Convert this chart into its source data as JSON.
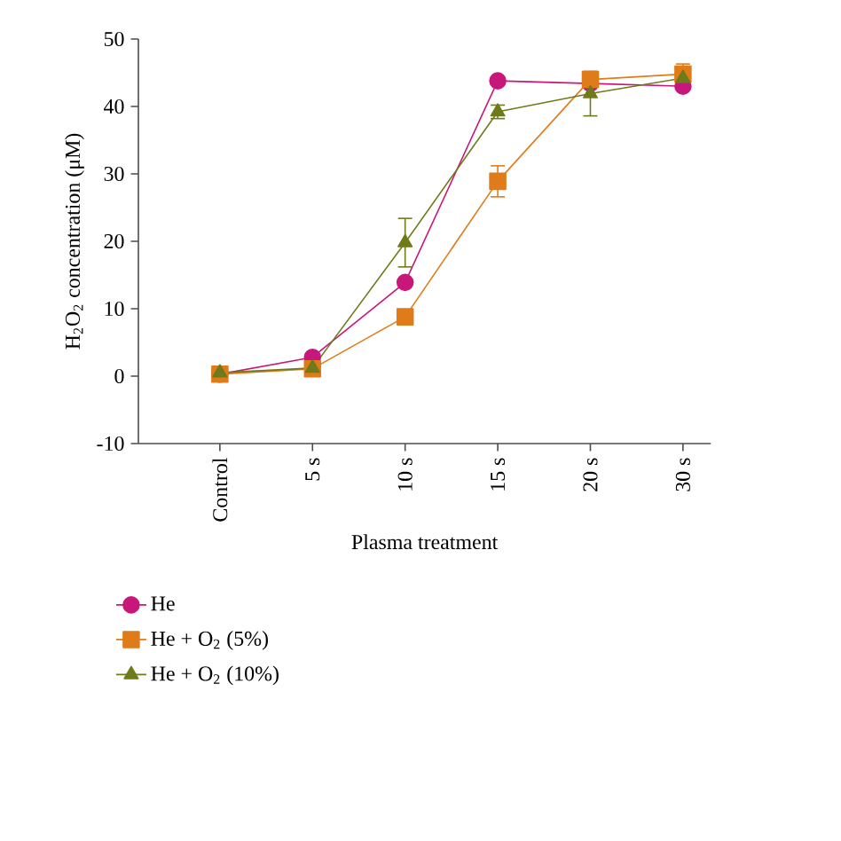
{
  "chart_data": {
    "type": "line",
    "xlabel": "Plasma treatment",
    "ylabel": "H$_{2}$O$_{2}$ concentration (μM)",
    "categories": [
      "Control",
      "5 s",
      "10 s",
      "15 s",
      "20 s",
      "30 s"
    ],
    "ylim": [
      -10,
      50
    ],
    "yticks": [
      -10,
      0,
      10,
      20,
      30,
      40,
      50
    ],
    "legend": "bottom",
    "grid": false,
    "line_style": "solid",
    "series": [
      {
        "name": "He",
        "color": "#c8177a",
        "marker": "circle",
        "values": [
          0.3,
          2.8,
          13.9,
          43.8,
          43.4,
          43.0
        ]
      },
      {
        "name": "He + O$_{2}$ (5%)",
        "color": "#e07b1a",
        "marker": "square",
        "values": [
          0.3,
          1.1,
          8.8,
          28.9,
          44.0,
          44.8
        ],
        "errors": [
          null,
          null,
          null,
          2.3,
          null,
          1.5
        ]
      },
      {
        "name": "He + O$_{2}$ (10%)",
        "color": "#6f7a1a",
        "marker": "triangle",
        "values": [
          0.5,
          1.2,
          19.8,
          39.2,
          41.9,
          44.2
        ],
        "errors": [
          null,
          null,
          3.6,
          1.0,
          3.3,
          1.5
        ]
      }
    ]
  }
}
